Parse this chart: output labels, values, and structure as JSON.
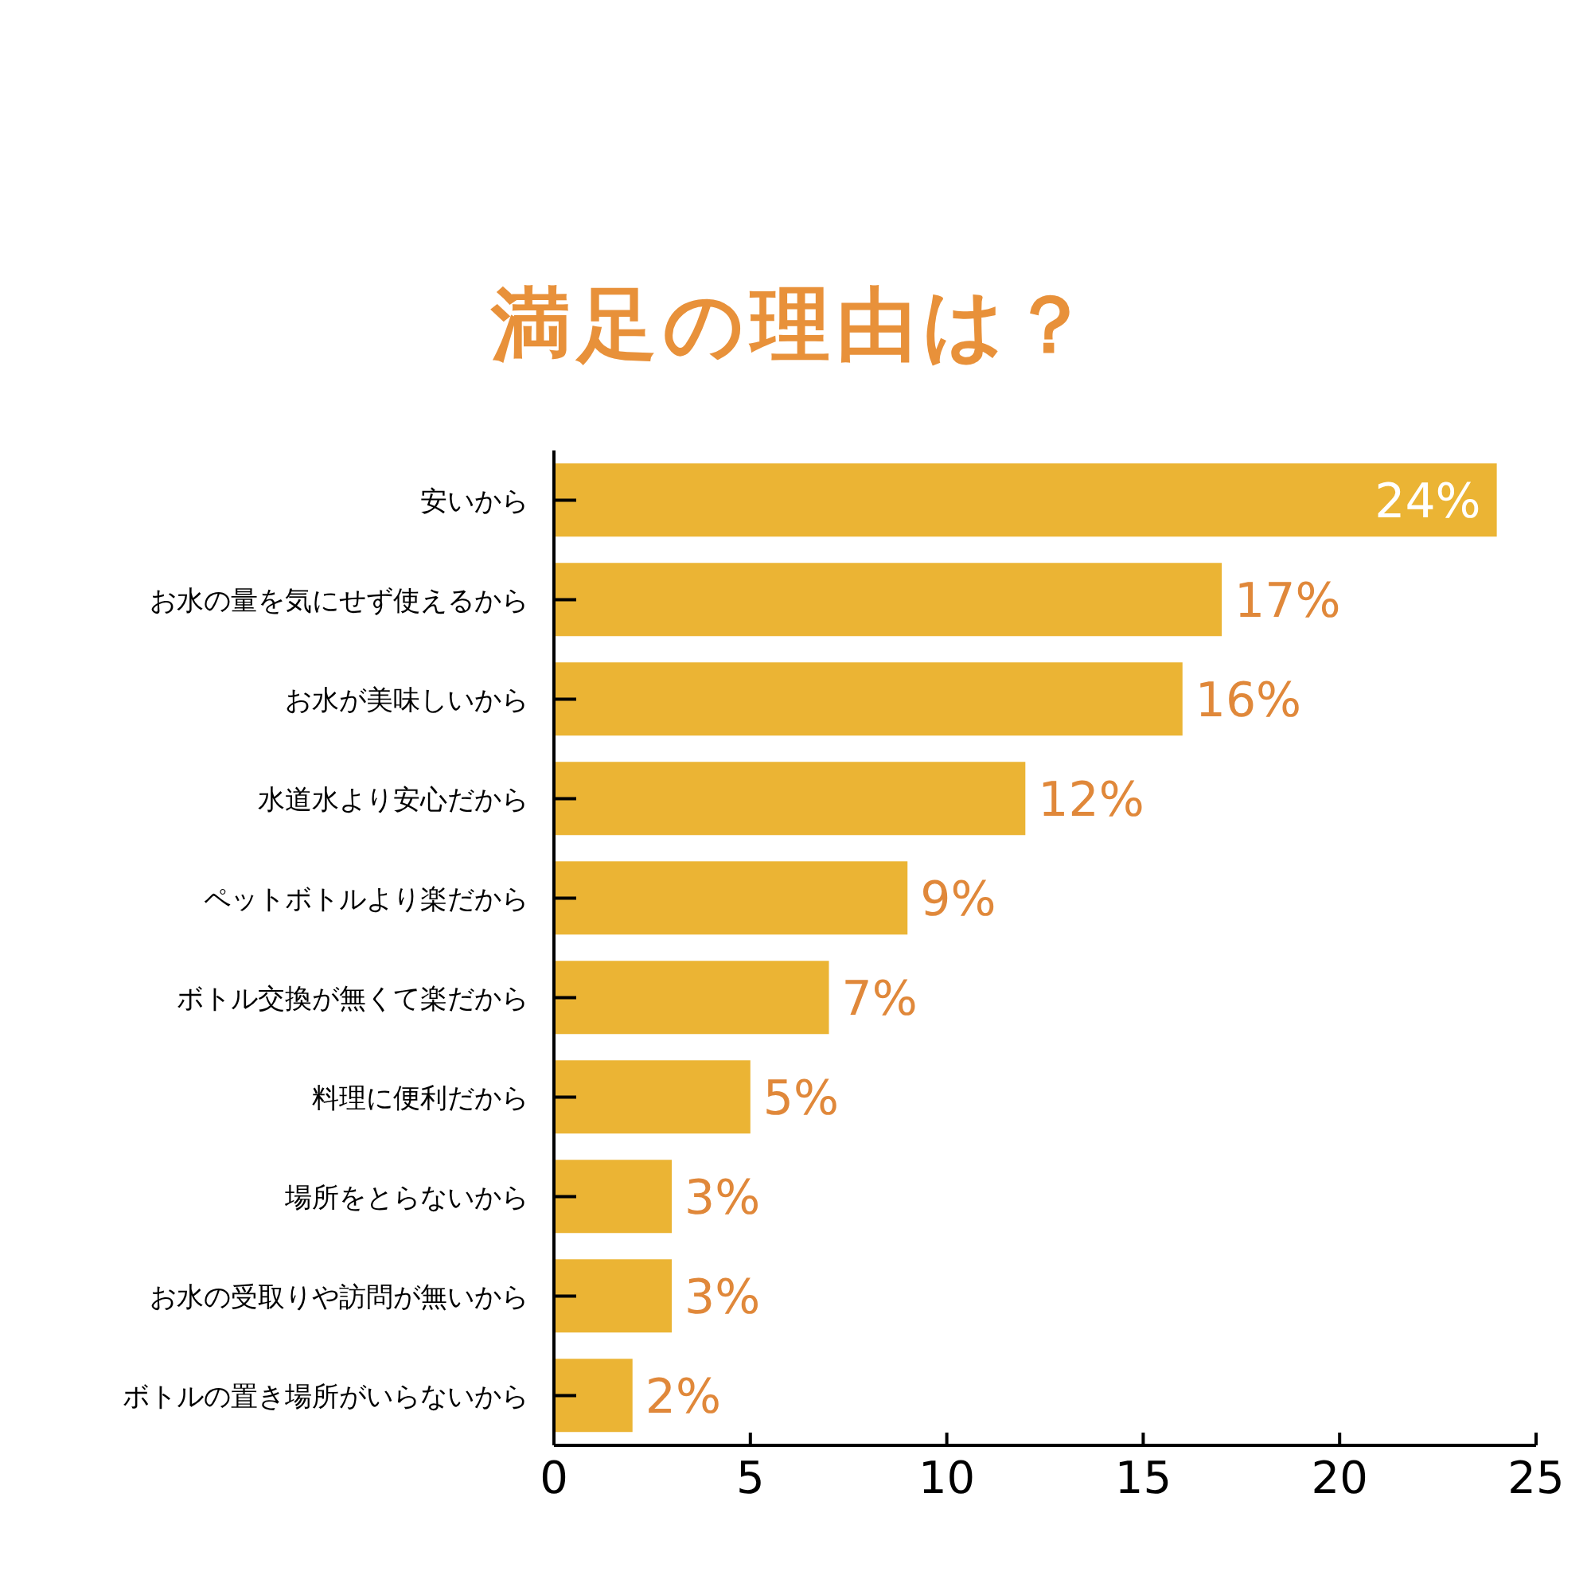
{
  "chart_data": {
    "type": "bar",
    "orientation": "horizontal",
    "title": "満足の理由は？",
    "categories": [
      "安いから",
      "お水の量を気にせず使えるから",
      "お水が美味しいから",
      "水道水より安心だから",
      "ペットボトルより楽だから",
      "ボトル交換が無くて楽だから",
      "料理に便利だから",
      "場所をとらないから",
      "お水の受取りや訪問が無いから",
      "ボトルの置き場所がいらないから"
    ],
    "values": [
      24,
      17,
      16,
      12,
      9,
      7,
      5,
      3,
      3,
      2
    ],
    "value_labels": [
      "24%",
      "17%",
      "16%",
      "12%",
      "9%",
      "7%",
      "5%",
      "3%",
      "3%",
      "2%"
    ],
    "color": "#ebb434",
    "xlim": [
      0,
      25
    ],
    "xticks": [
      0,
      5,
      10,
      15,
      20,
      25
    ],
    "grid": false
  }
}
